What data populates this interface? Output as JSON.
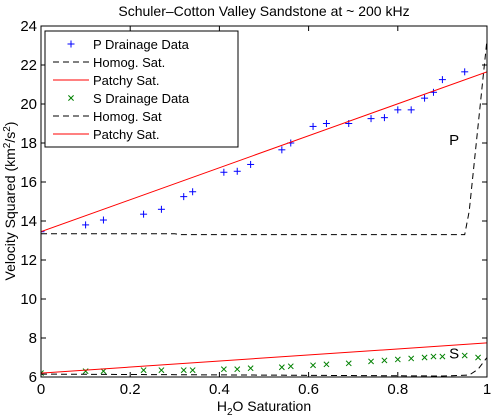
{
  "chart_data": {
    "type": "scatter",
    "title": "Schuler–Cotton Valley Sandstone at ~ 200 kHz",
    "xlabel": {
      "prefix": "H",
      "sub": "2",
      "suffix": "O Saturation"
    },
    "ylabel": {
      "prefix": "Velocity Squared (km",
      "sup1": "2",
      "mid": "/s",
      "sup2": "2",
      "suffix": ")"
    },
    "xlim": [
      0,
      1
    ],
    "ylim": [
      6,
      24
    ],
    "xticks": [
      0,
      0.2,
      0.4,
      0.6,
      0.8,
      1
    ],
    "xtick_labels": [
      "0",
      "0.2",
      "0.4",
      "0.6",
      "0.8",
      "1"
    ],
    "yticks": [
      6,
      8,
      10,
      12,
      14,
      16,
      18,
      20,
      22,
      24
    ],
    "ytick_labels": [
      "6",
      "8",
      "10",
      "12",
      "14",
      "16",
      "18",
      "20",
      "22",
      "24"
    ],
    "grid": false,
    "legend_position": "top-left",
    "annotations": [
      {
        "text": "P",
        "x": 0.915,
        "y": 17.9
      },
      {
        "text": "S",
        "x": 0.915,
        "y": 6.95
      }
    ],
    "series": [
      {
        "name": "P Drainage Data",
        "style": "marker",
        "marker": "+",
        "color": "#0000ff",
        "x": [
          0.0,
          0.1,
          0.14,
          0.23,
          0.27,
          0.32,
          0.34,
          0.41,
          0.44,
          0.47,
          0.54,
          0.56,
          0.61,
          0.64,
          0.69,
          0.74,
          0.77,
          0.8,
          0.83,
          0.86,
          0.88,
          0.9,
          0.95
        ],
        "y": [
          13.45,
          13.8,
          14.05,
          14.35,
          14.6,
          15.25,
          15.5,
          16.5,
          16.55,
          16.9,
          17.65,
          18.0,
          18.85,
          19.0,
          19.0,
          19.25,
          19.3,
          19.7,
          19.7,
          20.3,
          20.6,
          21.25,
          21.65
        ]
      },
      {
        "name": "Homog. Sat.",
        "style": "line",
        "dash": "dashed",
        "color": "#000000",
        "x": [
          0.0,
          0.3,
          0.31,
          0.6,
          0.61,
          0.95,
          0.96,
          1.0
        ],
        "y": [
          13.35,
          13.35,
          13.3,
          13.3,
          13.3,
          13.3,
          14.5,
          23.3
        ]
      },
      {
        "name": "Patchy Sat.",
        "style": "line",
        "dash": "solid",
        "color": "#ff0000",
        "x": [
          0.0,
          1.0
        ],
        "y": [
          13.45,
          21.65
        ]
      },
      {
        "name": "S Drainage Data",
        "style": "marker",
        "marker": "x",
        "color": "#008000",
        "x": [
          0.0,
          0.1,
          0.14,
          0.23,
          0.27,
          0.32,
          0.34,
          0.41,
          0.44,
          0.47,
          0.54,
          0.56,
          0.61,
          0.64,
          0.69,
          0.74,
          0.77,
          0.8,
          0.83,
          0.86,
          0.88,
          0.9,
          0.95,
          0.98
        ],
        "y": [
          6.2,
          6.3,
          6.3,
          6.35,
          6.35,
          6.35,
          6.35,
          6.4,
          6.4,
          6.45,
          6.5,
          6.55,
          6.6,
          6.65,
          6.7,
          6.8,
          6.85,
          6.9,
          6.95,
          7.0,
          7.05,
          7.05,
          7.1,
          7.0
        ]
      },
      {
        "name": "Homog. Sat",
        "style": "line",
        "dash": "dashed",
        "color": "#000000",
        "x": [
          0.0,
          0.5,
          0.9,
          0.96,
          0.98,
          1.0
        ],
        "y": [
          6.15,
          6.1,
          6.05,
          6.1,
          6.4,
          7.0
        ]
      },
      {
        "name": "Patchy Sat.",
        "style": "line",
        "dash": "solid",
        "color": "#ff0000",
        "x": [
          0.0,
          1.0
        ],
        "y": [
          6.2,
          7.75
        ]
      }
    ]
  }
}
